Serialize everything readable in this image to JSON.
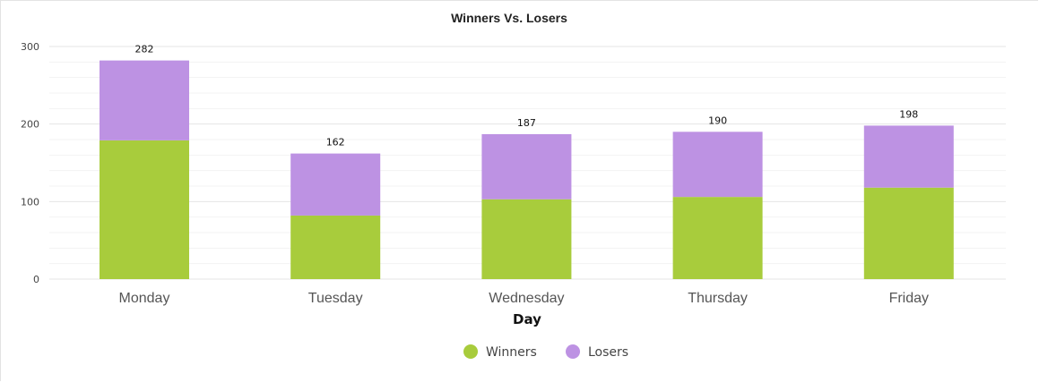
{
  "chart_data": {
    "type": "bar",
    "stacked": true,
    "title": "Winners Vs. Losers",
    "xlabel": "Day",
    "ylabel": "",
    "categories": [
      "Monday",
      "Tuesday",
      "Wednesday",
      "Thursday",
      "Friday"
    ],
    "series": [
      {
        "name": "Winners",
        "color": "#a8cc3c",
        "values": [
          179,
          82,
          103,
          106,
          118
        ]
      },
      {
        "name": "Losers",
        "color": "#bd92e3",
        "values": [
          103,
          80,
          84,
          84,
          80
        ]
      }
    ],
    "totals": [
      282,
      162,
      187,
      190,
      198
    ],
    "total_labels": [
      "282",
      "162",
      "187",
      "190",
      "198"
    ],
    "ylim": [
      0,
      300
    ],
    "yticks": [
      0,
      100,
      200,
      300
    ],
    "ytick_labels": [
      "0",
      "100",
      "200",
      "300"
    ],
    "grid": true,
    "legend": "bottom-center"
  }
}
